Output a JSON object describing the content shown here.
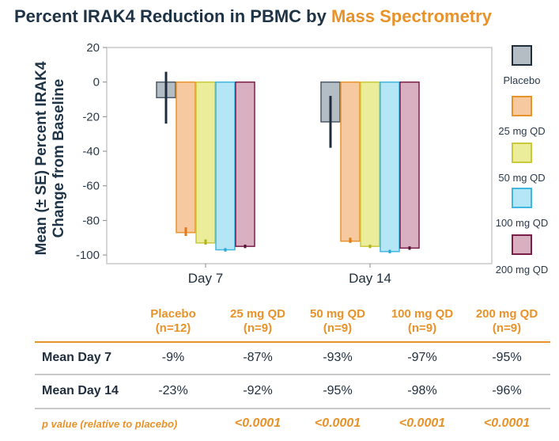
{
  "title": {
    "main": "Percent IRAK4 Reduction in PBMC by ",
    "accent": "Mass Spectrometry"
  },
  "chart_data": {
    "type": "bar",
    "title": "Percent IRAK4 Reduction in PBMC by Mass Spectrometry",
    "ylabel_line1": "Mean (± SE) Percent IRAK4",
    "ylabel_line2": "Change from Baseline",
    "xlabel": "",
    "categories": [
      "Day 7",
      "Day 14"
    ],
    "ylim": [
      -105,
      20
    ],
    "yticks": [
      20,
      0,
      -20,
      -40,
      -60,
      -80,
      -100
    ],
    "grid": false,
    "legend_position": "right",
    "series": [
      {
        "name": "Placebo",
        "values": [
          -9,
          -23
        ],
        "se_low": [
          -24,
          -38
        ],
        "se_high": [
          6,
          -8
        ],
        "fill": "#b4bcc4",
        "stroke": "#4a5a6a",
        "err": "#1f2d3d"
      },
      {
        "name": "25 mg QD",
        "values": [
          -87,
          -92
        ],
        "se_low": [
          -89,
          -93
        ],
        "se_high": [
          -84,
          -90
        ],
        "fill": "#f6c9a0",
        "stroke": "#e8922a",
        "err": "#e07a1a"
      },
      {
        "name": "50 mg QD",
        "values": [
          -93,
          -95
        ],
        "se_low": [
          -94,
          -96
        ],
        "se_high": [
          -91,
          -94
        ],
        "fill": "#eced9a",
        "stroke": "#c9c93a",
        "err": "#b0b020"
      },
      {
        "name": "100 mg QD",
        "values": [
          -97,
          -98
        ],
        "se_low": [
          -98,
          -99
        ],
        "se_high": [
          -96,
          -97
        ],
        "fill": "#b5e6f5",
        "stroke": "#3fb7e0",
        "err": "#2aa6d6"
      },
      {
        "name": "200 mg QD",
        "values": [
          -95,
          -96
        ],
        "se_low": [
          -96,
          -97
        ],
        "se_high": [
          -94,
          -95
        ],
        "fill": "#d8b0c0",
        "stroke": "#7a1e48",
        "err": "#5a1234"
      }
    ]
  },
  "legend": [
    {
      "label": "Placebo",
      "fill": "#b4bcc4",
      "stroke": "#1f2d3d"
    },
    {
      "label": "25 mg QD",
      "fill": "#f6c9a0",
      "stroke": "#e8922a"
    },
    {
      "label": "50 mg QD",
      "fill": "#eced9a",
      "stroke": "#c9c93a"
    },
    {
      "label": "100 mg QD",
      "fill": "#b5e6f5",
      "stroke": "#3fb7e0"
    },
    {
      "label": "200 mg QD",
      "fill": "#d8b0c0",
      "stroke": "#7a1e48"
    }
  ],
  "table": {
    "headers": [
      {
        "line1": "Placebo",
        "line2": "(n=12)"
      },
      {
        "line1": "25 mg QD",
        "line2": "(n=9)"
      },
      {
        "line1": "50 mg QD",
        "line2": "(n=9)"
      },
      {
        "line1": "100 mg QD",
        "line2": "(n=9)"
      },
      {
        "line1": "200 mg QD",
        "line2": "(n=9)"
      }
    ],
    "rows": [
      {
        "label": "Mean Day 7",
        "values": [
          "-9%",
          "-87%",
          "-93%",
          "-97%",
          "-95%"
        ]
      },
      {
        "label": "Mean Day 14",
        "values": [
          "-23%",
          "-92%",
          "-95%",
          "-98%",
          "-96%"
        ]
      }
    ],
    "pvalue": {
      "label": "p value (relative to placebo)",
      "values": [
        "<0.0001",
        "<0.0001",
        "<0.0001",
        "<0.0001"
      ]
    },
    "accent_color": "#e8922a",
    "rule_color": "#c8c8c8"
  }
}
